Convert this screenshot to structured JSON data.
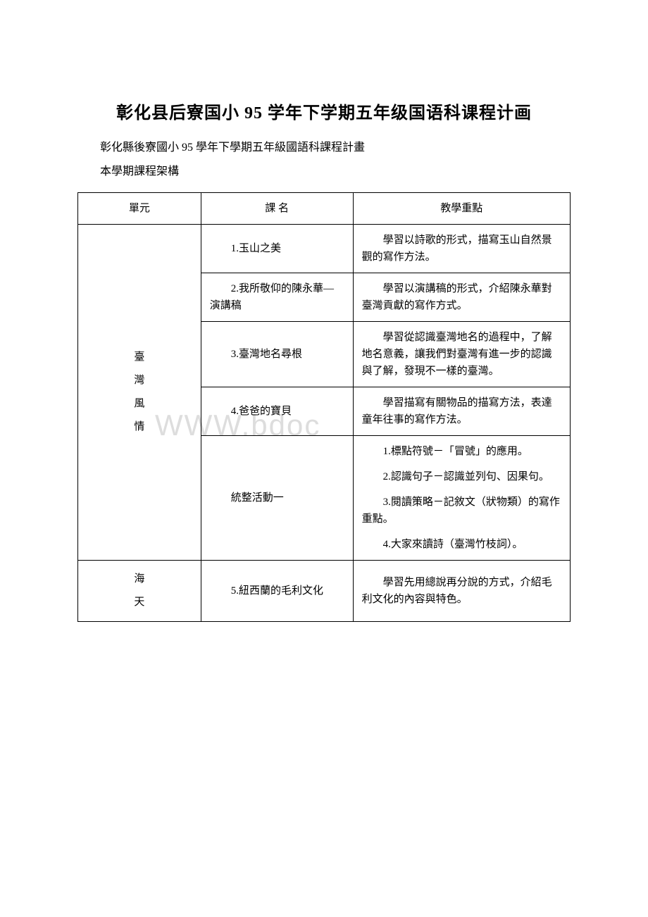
{
  "title": "彰化县后寮国小 95 学年下学期五年级国语科课程计画",
  "subtitle": "彰化縣後寮國小 95 學年下學期五年級國語科課程計畫",
  "section_label": "本學期課程架構",
  "watermark": "WWW.bdoc",
  "table": {
    "headers": {
      "unit": "單元",
      "course": "課 名",
      "focus": "教學重點"
    },
    "rows": [
      {
        "unit": "臺\n灣\n風\n情",
        "unit_rowspan": 5,
        "course": "1.玉山之美",
        "focus": [
          "學習以詩歌的形式，描寫玉山自然景觀的寫作方法。"
        ]
      },
      {
        "course": "2.我所敬仰的陳永華—演講稿",
        "focus": [
          "學習以演講稿的形式，介紹陳永華對臺灣貢獻的寫作方式。"
        ]
      },
      {
        "course": "3.臺灣地名尋根",
        "focus": [
          "學習從認識臺灣地名的過程中，了解地名意義，讓我們對臺灣有進一步的認識與了解，發現不一樣的臺灣。"
        ]
      },
      {
        "course": "4.爸爸的寶貝",
        "focus": [
          "學習描寫有關物品的描寫方法，表達童年往事的寫作方法。"
        ]
      },
      {
        "course": "統整活動一",
        "focus": [
          "1.標點符號－「冒號」的應用。",
          "2.認識句子－認識並列句、因果句。",
          "3.閱讀策略－記敘文（狀物類）的寫作重點。",
          "4.大家來讀詩（臺灣竹枝詞）。"
        ]
      },
      {
        "unit": "海\n天",
        "unit_rowspan": 1,
        "course": "5.紐西蘭的毛利文化",
        "focus": [
          "學習先用總說再分說的方式，介紹毛利文化的內容與特色。"
        ]
      }
    ]
  }
}
